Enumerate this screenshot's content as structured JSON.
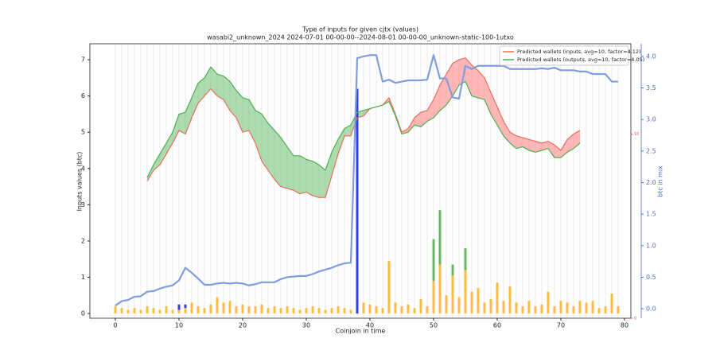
{
  "chart_data": {
    "type": "line",
    "title": "Type of inputs for given cjtx (values)",
    "subtitle": "wasabi2_unknown_2024 2024-07-01 00-00-00--2024-08-01 00-00-00_unknown-static-100-1utxo",
    "xlabel": "Coinjoin in time",
    "ylabel": "Inputs values (btc)",
    "y2label": "btc in mix",
    "legend": "upper right",
    "xlim": [
      -4,
      81
    ],
    "xticks": [
      0,
      10,
      20,
      30,
      40,
      50,
      60,
      70,
      80
    ],
    "ylim": [
      -0.13,
      7.44
    ],
    "yticks": [
      0,
      1,
      2,
      3,
      4,
      5,
      6,
      7
    ],
    "y2lim": [
      -0.15,
      4.2
    ],
    "y2ticks": [
      {
        "value": 0,
        "label": "0.0"
      },
      {
        "value": 0.5,
        "label": "0.5"
      },
      {
        "value": 1,
        "label": "1.0"
      },
      {
        "value": 1.5,
        "label": "1.5"
      },
      {
        "value": 2,
        "label": "2.0"
      },
      {
        "value": 2.5,
        "label": "2.5"
      },
      {
        "value": 3,
        "label": "3.0"
      },
      {
        "value": 3.5,
        "label": "3.5"
      },
      {
        "value": 4,
        "label": "4.0"
      }
    ],
    "y3lim": [
      0,
      14.9
    ],
    "y3ticks": [
      0,
      10
    ],
    "y3color": "#e05050",
    "y2color": "#4a72d0",
    "fill_between": true,
    "x": [
      0,
      1,
      2,
      3,
      4,
      5,
      6,
      7,
      8,
      9,
      10,
      11,
      12,
      13,
      14,
      15,
      16,
      17,
      18,
      19,
      20,
      21,
      22,
      23,
      24,
      25,
      26,
      27,
      28,
      29,
      30,
      31,
      32,
      33,
      34,
      35,
      36,
      37,
      38,
      39,
      40,
      41,
      42,
      43,
      44,
      45,
      46,
      47,
      48,
      49,
      50,
      51,
      52,
      53,
      54,
      55,
      56,
      57,
      58,
      59,
      60,
      61,
      62,
      63,
      64,
      65,
      66,
      67,
      68,
      69,
      70,
      71,
      72,
      73,
      74,
      75,
      76,
      77,
      78,
      79
    ],
    "series": [
      {
        "name": "Predicted wallets (inputs, avg=10, factor=4.12)",
        "color": "#e8705a",
        "values": [
          null,
          null,
          null,
          null,
          null,
          3.65,
          3.95,
          4.1,
          4.4,
          4.7,
          5.05,
          4.95,
          5.4,
          5.8,
          6.0,
          6.2,
          6.0,
          5.9,
          5.6,
          5.4,
          5.0,
          5.05,
          4.7,
          4.2,
          3.95,
          3.7,
          3.5,
          3.45,
          3.4,
          3.3,
          3.35,
          3.25,
          3.2,
          3.2,
          3.8,
          4.4,
          4.9,
          4.9,
          5.4,
          5.45,
          5.65,
          5.7,
          5.75,
          5.95,
          5.5,
          5.0,
          5.1,
          5.4,
          5.55,
          5.6,
          5.9,
          6.3,
          6.6,
          6.9,
          7.0,
          7.05,
          6.85,
          6.7,
          6.5,
          6.1,
          5.7,
          5.3,
          5.0,
          4.9,
          4.85,
          4.8,
          4.75,
          4.7,
          4.75,
          4.65,
          4.5,
          4.8,
          4.95,
          5.05,
          null,
          null,
          null,
          null,
          null,
          null
        ]
      },
      {
        "name": "Predicted wallets (outputs, avg=10, factor=4.05)",
        "color": "#4caf50",
        "values": [
          null,
          null,
          null,
          null,
          null,
          3.75,
          4.1,
          4.4,
          4.7,
          5.0,
          5.5,
          5.55,
          5.95,
          6.35,
          6.5,
          6.8,
          6.6,
          6.55,
          6.4,
          6.15,
          5.95,
          5.9,
          5.6,
          5.5,
          5.25,
          5.05,
          4.85,
          4.6,
          4.35,
          4.35,
          4.25,
          4.2,
          4.1,
          3.95,
          4.45,
          4.8,
          5.1,
          5.2,
          5.55,
          5.6,
          5.65,
          5.7,
          5.75,
          5.85,
          5.45,
          4.95,
          5.0,
          5.2,
          5.15,
          5.3,
          5.4,
          5.6,
          5.75,
          6.0,
          6.3,
          6.4,
          6.0,
          5.95,
          5.9,
          5.5,
          5.2,
          4.9,
          4.7,
          4.55,
          4.6,
          4.5,
          4.45,
          4.5,
          4.55,
          4.3,
          4.3,
          4.45,
          4.55,
          4.7,
          null,
          null,
          null,
          null,
          null,
          null
        ]
      },
      {
        "color": "#7f9de0",
        "axis": "y2",
        "values": [
          0.05,
          0.12,
          0.14,
          0.19,
          0.2,
          0.27,
          0.28,
          0.32,
          0.35,
          0.37,
          0.45,
          0.65,
          0.57,
          0.48,
          0.38,
          0.38,
          0.4,
          0.41,
          0.4,
          0.41,
          0.4,
          0.37,
          0.39,
          0.42,
          0.42,
          0.42,
          0.47,
          0.5,
          0.51,
          0.52,
          0.52,
          0.55,
          0.59,
          0.62,
          0.65,
          0.69,
          0.72,
          0.73,
          3.97,
          4.0,
          4.02,
          4.02,
          3.6,
          3.63,
          3.58,
          3.6,
          3.62,
          3.62,
          3.62,
          3.63,
          4.02,
          3.65,
          3.65,
          3.35,
          3.33,
          3.85,
          3.8,
          3.85,
          3.85,
          3.85,
          3.85,
          3.85,
          3.8,
          3.8,
          3.8,
          3.8,
          3.8,
          3.81,
          3.8,
          3.82,
          3.78,
          3.78,
          3.78,
          3.76,
          3.76,
          3.72,
          3.72,
          3.72,
          3.6,
          3.6
        ]
      }
    ],
    "bars": [
      {
        "color": "#f5b830",
        "values": [
          0.2,
          0.15,
          0.1,
          0.15,
          0.1,
          0.2,
          0.15,
          0.1,
          0.2,
          0.1,
          0.1,
          0.15,
          0.3,
          0.2,
          0.15,
          0.25,
          0.45,
          0.3,
          0.35,
          0.2,
          0.25,
          0.2,
          0.2,
          0.25,
          0.15,
          0.2,
          0.15,
          0.2,
          0.15,
          0.1,
          0.15,
          0.2,
          0.15,
          0.1,
          0.15,
          0.2,
          0.15,
          0.1,
          0,
          0.3,
          0.25,
          0.2,
          0.15,
          1.45,
          0.3,
          0.2,
          0.25,
          0.15,
          0.4,
          0.2,
          0.9,
          1.35,
          0.5,
          1.05,
          0.45,
          1.2,
          0.6,
          0.7,
          0.3,
          0.4,
          0.85,
          0.35,
          0.75,
          0.3,
          0.2,
          0.35,
          0.2,
          0.25,
          0.6,
          0.2,
          0.35,
          0.3,
          0.2,
          0.35,
          0.3,
          0.35,
          0.15,
          0.2,
          0.55,
          0.2
        ]
      },
      {
        "color": "#5aac5a",
        "values": [
          0,
          0,
          0,
          0,
          0,
          0,
          0,
          0,
          0,
          0,
          0,
          0,
          0,
          0,
          0,
          0,
          0,
          0,
          0,
          0,
          0,
          0,
          0,
          0,
          0,
          0,
          0,
          0,
          0,
          0,
          0,
          0,
          0,
          0,
          0,
          0,
          0,
          0,
          0,
          0,
          0,
          0,
          0,
          0,
          0,
          0,
          0,
          0,
          0,
          0,
          1.15,
          1.5,
          0,
          0.3,
          0,
          0.6,
          0,
          0,
          0,
          0,
          0,
          0,
          0,
          0,
          0,
          0,
          0,
          0,
          0,
          0,
          0,
          0,
          0,
          0,
          0,
          0,
          0,
          0,
          0,
          0
        ]
      },
      {
        "color": "#1a2ee0",
        "values": [
          0,
          0,
          0,
          0,
          0,
          0,
          0,
          0,
          0,
          0,
          0.15,
          0.1,
          0,
          0,
          0,
          0,
          0,
          0,
          0,
          0,
          0,
          0,
          0,
          0,
          0,
          0,
          0,
          0,
          0,
          0,
          0,
          0,
          0,
          0,
          0,
          0,
          0,
          0,
          6.2,
          0,
          0,
          0,
          0,
          0,
          0,
          0,
          0,
          0,
          0,
          0,
          0,
          0,
          0,
          0,
          0,
          0,
          0,
          0,
          0,
          0,
          0,
          0,
          0,
          0,
          0,
          0,
          0,
          0,
          0,
          0,
          0,
          0,
          0,
          0,
          0,
          0,
          0,
          0,
          0,
          0
        ]
      }
    ]
  }
}
